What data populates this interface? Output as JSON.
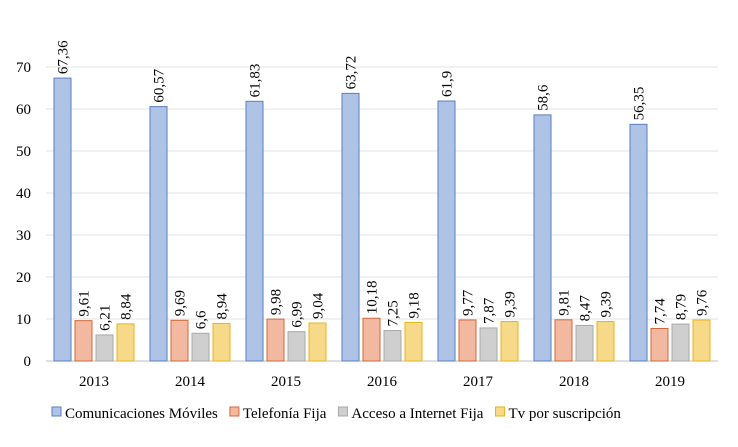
{
  "chart_data": {
    "type": "bar",
    "categories": [
      "2013",
      "2014",
      "2015",
      "2016",
      "2017",
      "2018",
      "2019"
    ],
    "series": [
      {
        "name": "Comunicaciones Móviles",
        "values": [
          67.36,
          60.57,
          61.83,
          63.72,
          61.9,
          58.6,
          56.35
        ],
        "labels": [
          "67,36",
          "60,57",
          "61,83",
          "63,72",
          "61,9",
          "58,6",
          "56,35"
        ],
        "color": "#aec3e6",
        "stroke": "#5b7fc0"
      },
      {
        "name": "Telefonía Fija",
        "values": [
          9.61,
          9.69,
          9.98,
          10.18,
          9.77,
          9.81,
          7.74
        ],
        "labels": [
          "9,61",
          "9,69",
          "9,98",
          "10,18",
          "9,77",
          "9,81",
          "7,74"
        ],
        "color": "#f2b8a0",
        "stroke": "#d06a3c"
      },
      {
        "name": "Acceso a Internet Fija",
        "values": [
          6.21,
          6.6,
          6.99,
          7.25,
          7.87,
          8.47,
          8.79
        ],
        "labels": [
          "6,21",
          "6,6",
          "6,99",
          "7,25",
          "7,87",
          "8,47",
          "8,79"
        ],
        "color": "#cfcfcf",
        "stroke": "#a8a8a8"
      },
      {
        "name": "Tv por suscripción",
        "values": [
          8.84,
          8.94,
          9.04,
          9.18,
          9.39,
          9.39,
          9.76
        ],
        "labels": [
          "8,84",
          "8,94",
          "9,04",
          "9,18",
          "9,39",
          "9,39",
          "9,76"
        ],
        "color": "#f7d98a",
        "stroke": "#e8b41c"
      }
    ],
    "yticks": [
      "0",
      "10",
      "20",
      "30",
      "40",
      "50",
      "60",
      "70"
    ],
    "ylim": [
      0,
      80
    ],
    "grid": true,
    "legend_position": "bottom"
  }
}
